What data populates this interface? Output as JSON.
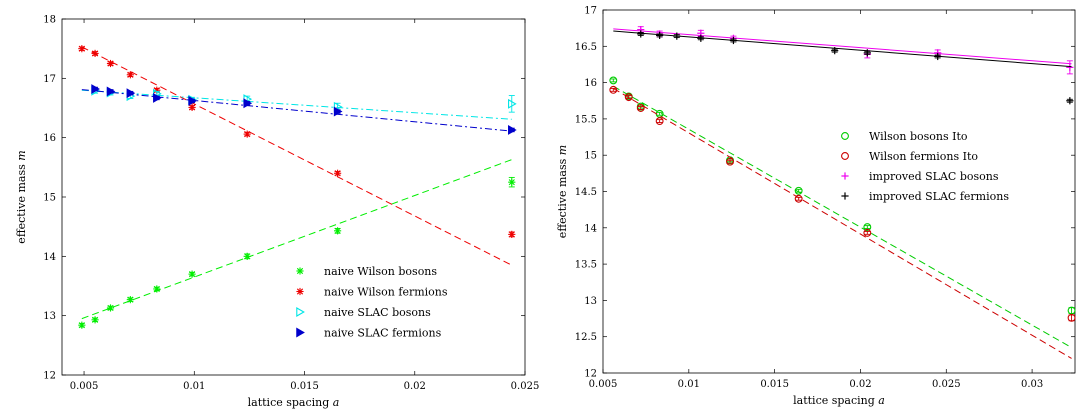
{
  "chart_data": [
    {
      "type": "scatter",
      "xlabel": "lattice spacing a",
      "ylabel": "effective mass m",
      "xlim": [
        0.004,
        0.025
      ],
      "ylim": [
        12,
        18
      ],
      "xticks": [
        0.005,
        0.01,
        0.015,
        0.02,
        0.025
      ],
      "xtick_labels": [
        "0.005",
        "0.01",
        "0.015",
        "0.02",
        "0.025"
      ],
      "yticks": [
        12,
        13,
        14,
        15,
        16,
        17,
        18
      ],
      "ytick_labels": [
        "12",
        "13",
        "14",
        "15",
        "16",
        "17",
        "18"
      ],
      "legend_position": "lower-right",
      "series": [
        {
          "name": "naive Wilson bosons",
          "color": "#00ee00",
          "marker": "star",
          "x": [
            0.0049,
            0.0055,
            0.0062,
            0.0071,
            0.0083,
            0.0099,
            0.0124,
            0.0165,
            0.0244
          ],
          "y": [
            12.84,
            12.93,
            13.13,
            13.27,
            13.45,
            13.7,
            14.0,
            14.43,
            15.25
          ],
          "err": [
            0.03,
            0.03,
            0.03,
            0.03,
            0.03,
            0.03,
            0.04,
            0.04,
            0.08
          ],
          "fit": {
            "x": [
              0.0049,
              0.0244
            ],
            "y": [
              12.95,
              15.63
            ],
            "dash": "long"
          }
        },
        {
          "name": "naive Wilson fermions",
          "color": "#ee0000",
          "marker": "star",
          "x": [
            0.0049,
            0.0055,
            0.0062,
            0.0071,
            0.0083,
            0.0099,
            0.0124,
            0.0165,
            0.0244
          ],
          "y": [
            17.5,
            17.42,
            17.25,
            17.06,
            16.8,
            16.51,
            16.06,
            15.4,
            14.37
          ],
          "err": [
            0.03,
            0.03,
            0.03,
            0.03,
            0.03,
            0.03,
            0.03,
            0.03,
            0.04
          ],
          "fit": {
            "x": [
              0.0049,
              0.0244
            ],
            "y": [
              17.53,
              13.85
            ],
            "dash": "long"
          }
        },
        {
          "name": "naive SLAC bosons",
          "color": "#00e6e6",
          "marker": "triangle-right-open",
          "x": [
            0.0055,
            0.0062,
            0.0071,
            0.0083,
            0.0099,
            0.0124,
            0.0165,
            0.0244
          ],
          "y": [
            16.79,
            16.76,
            16.7,
            16.74,
            16.64,
            16.65,
            16.52,
            16.57
          ],
          "err": [
            0.04,
            0.04,
            0.04,
            0.04,
            0.04,
            0.05,
            0.06,
            0.14
          ],
          "fit": {
            "x": [
              0.0049,
              0.0244
            ],
            "y": [
              16.8,
              16.31
            ],
            "dash": "dashdot"
          }
        },
        {
          "name": "naive SLAC fermions",
          "color": "#0000cc",
          "marker": "triangle-right",
          "x": [
            0.0055,
            0.0062,
            0.0071,
            0.0083,
            0.0099,
            0.0124,
            0.0165,
            0.0244
          ],
          "y": [
            16.82,
            16.78,
            16.75,
            16.67,
            16.62,
            16.58,
            16.44,
            16.13
          ],
          "err": [
            0.03,
            0.03,
            0.03,
            0.03,
            0.03,
            0.03,
            0.03,
            0.03
          ],
          "fit": {
            "x": [
              0.0049,
              0.0244
            ],
            "y": [
              16.81,
              16.11
            ],
            "dash": "dashdot"
          }
        }
      ]
    },
    {
      "type": "scatter",
      "xlabel": "lattice spacing a",
      "ylabel": "effective mass m",
      "xlim": [
        0.005,
        0.0325
      ],
      "ylim": [
        12,
        17
      ],
      "xticks": [
        0.005,
        0.01,
        0.015,
        0.02,
        0.025,
        0.03
      ],
      "xtick_labels": [
        "0.005",
        "0.01",
        "0.015",
        "0.02",
        "0.025",
        "0.03"
      ],
      "yticks": [
        12,
        12.5,
        13,
        13.5,
        14,
        14.5,
        15,
        15.5,
        16,
        16.5,
        17
      ],
      "ytick_labels": [
        "12",
        "12.5",
        "13",
        "13.5",
        "14",
        "14.5",
        "15",
        "15.5",
        "16",
        "16.5",
        "17"
      ],
      "legend_position": "center-right",
      "series": [
        {
          "name": "Wilson bosons Ito",
          "color": "#00cc00",
          "marker": "circle-open",
          "x": [
            0.0056,
            0.0065,
            0.0072,
            0.0083,
            0.0124,
            0.0164,
            0.0204,
            0.0323
          ],
          "y": [
            16.03,
            15.81,
            15.67,
            15.57,
            14.93,
            14.51,
            14.01,
            12.86
          ],
          "err": [
            0.02,
            0.02,
            0.02,
            0.02,
            0.02,
            0.02,
            0.02,
            0.04
          ],
          "fit": {
            "x": [
              0.0056,
              0.0323
            ],
            "y": [
              15.95,
              12.35
            ],
            "dash": "long"
          }
        },
        {
          "name": "Wilson fermions Ito",
          "color": "#cc0000",
          "marker": "circle-open",
          "x": [
            0.0056,
            0.0065,
            0.0072,
            0.0083,
            0.0124,
            0.0164,
            0.0204,
            0.0323
          ],
          "y": [
            15.9,
            15.8,
            15.65,
            15.47,
            14.91,
            14.4,
            13.93,
            12.76
          ],
          "err": [
            0.02,
            0.02,
            0.02,
            0.02,
            0.02,
            0.02,
            0.02,
            0.04
          ],
          "fit": {
            "x": [
              0.0056,
              0.0323
            ],
            "y": [
              15.92,
              12.2
            ],
            "dash": "long"
          }
        },
        {
          "name": "improved SLAC bosons",
          "color": "#ee00ee",
          "marker": "plus",
          "x": [
            0.0072,
            0.0083,
            0.0107,
            0.0126,
            0.0204,
            0.0245,
            0.0322
          ],
          "y": [
            16.73,
            16.67,
            16.68,
            16.61,
            16.39,
            16.41,
            16.21
          ],
          "err": [
            0.04,
            0.04,
            0.04,
            0.03,
            0.05,
            0.04,
            0.09
          ],
          "fit": {
            "x": [
              0.0056,
              0.0323
            ],
            "y": [
              16.74,
              16.26
            ],
            "dash": "solid"
          }
        },
        {
          "name": "improved SLAC fermions",
          "color": "#000000",
          "marker": "plus",
          "x": [
            0.0072,
            0.0083,
            0.0093,
            0.0107,
            0.0126,
            0.0185,
            0.0204,
            0.0245,
            0.0322
          ],
          "y": [
            16.67,
            16.65,
            16.64,
            16.61,
            16.58,
            16.44,
            16.41,
            16.36,
            15.75
          ],
          "err": [
            0.02,
            0.02,
            0.02,
            0.02,
            0.02,
            0.02,
            0.02,
            0.02,
            0.02
          ],
          "fit": {
            "x": [
              0.0056,
              0.0323
            ],
            "y": [
              16.71,
              16.22
            ],
            "dash": "solid"
          }
        }
      ]
    }
  ]
}
